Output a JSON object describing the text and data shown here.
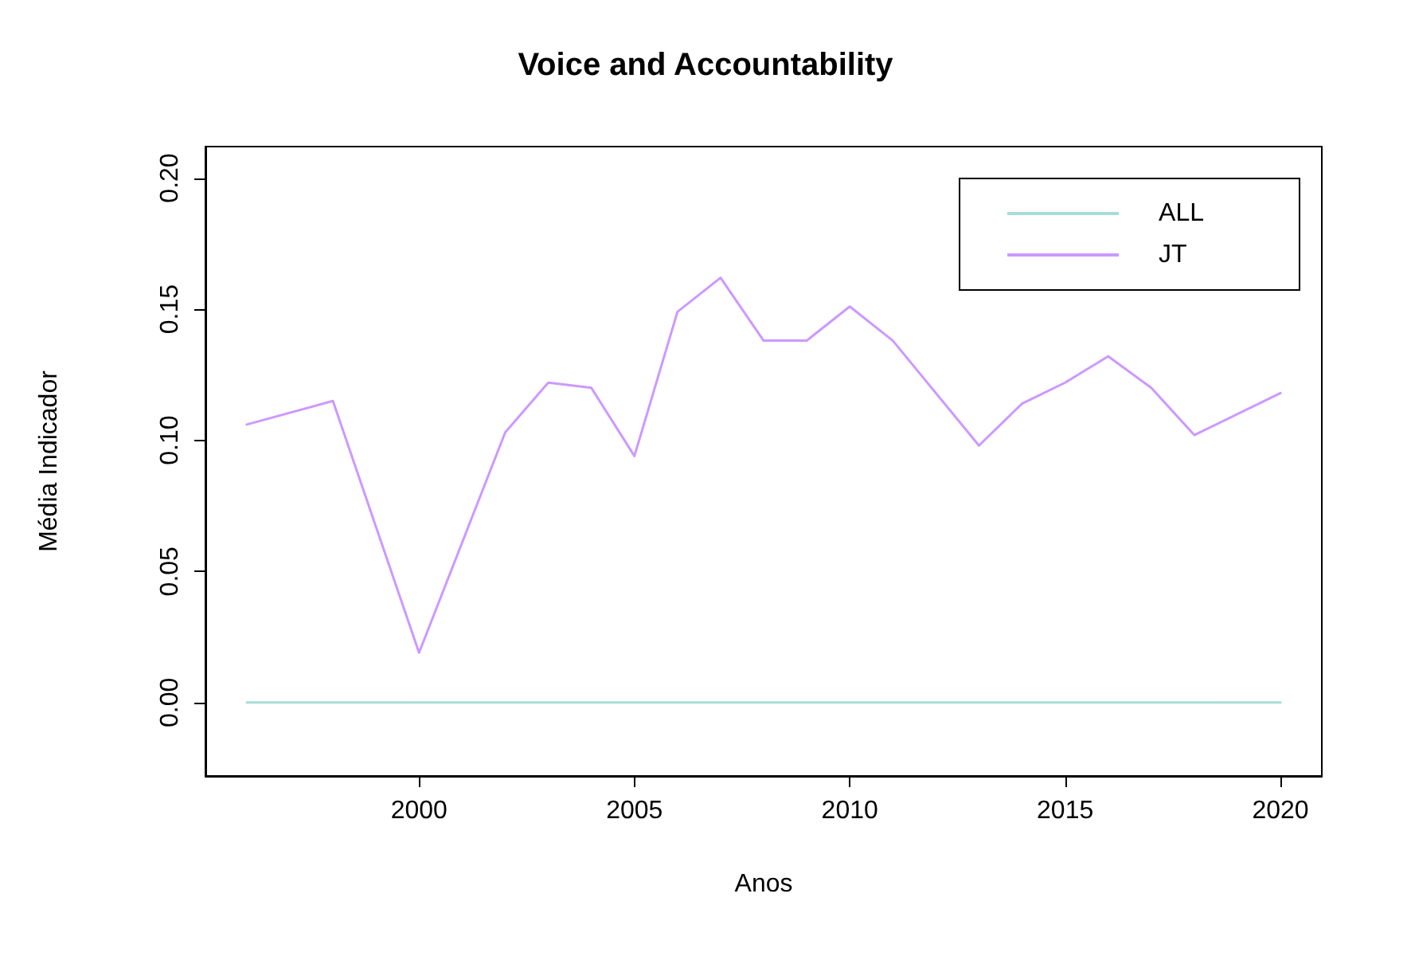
{
  "chart_data": {
    "type": "line",
    "title": "Voice and Accountability",
    "xlabel": "Anos",
    "ylabel": "Média Indicador",
    "xlim": [
      1995.04,
      2020.96
    ],
    "xticks": [
      2000,
      2005,
      2010,
      2015,
      2020
    ],
    "ylim": [
      -0.028,
      0.212
    ],
    "yticks": [
      {
        "value": 0,
        "label": "0.00"
      },
      {
        "value": 0.05,
        "label": "0.05"
      },
      {
        "value": 0.1,
        "label": "0.10"
      },
      {
        "value": 0.15,
        "label": "0.15"
      },
      {
        "value": 0.2,
        "label": "0.20"
      }
    ],
    "grid": false,
    "legend": "top right",
    "marker": "none",
    "line_style": "solid",
    "series": [
      {
        "name": "ALL",
        "color": "#a8ddd5",
        "x": [
          1996,
          2020
        ],
        "values": [
          0,
          0
        ]
      },
      {
        "name": "JT",
        "color": "#cc99ff",
        "x": [
          1996,
          1998,
          2000,
          2002,
          2003,
          2004,
          2005,
          2006,
          2007,
          2008,
          2009,
          2010,
          2011,
          2013,
          2014,
          2015,
          2016,
          2017,
          2018,
          2020
        ],
        "values": [
          0.106,
          0.115,
          0.019,
          0.103,
          0.122,
          0.12,
          0.094,
          0.149,
          0.162,
          0.138,
          0.138,
          0.151,
          0.138,
          0.098,
          0.114,
          0.122,
          0.132,
          0.12,
          0.102,
          0.118
        ]
      }
    ]
  }
}
